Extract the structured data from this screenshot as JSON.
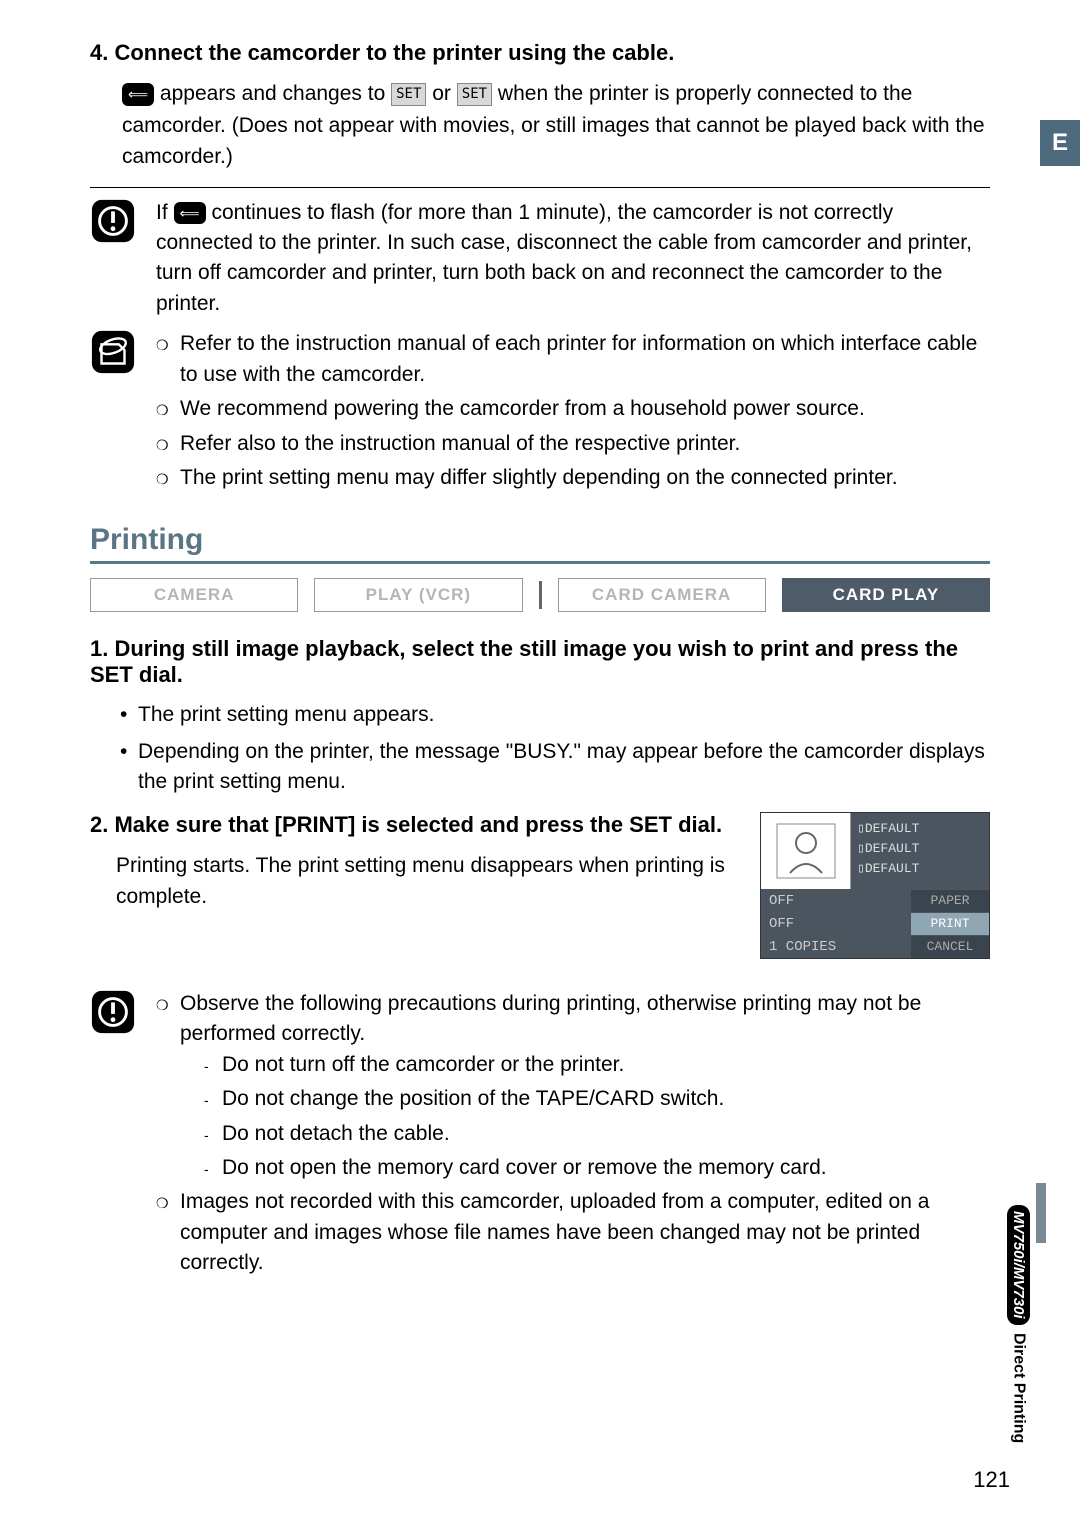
{
  "page": {
    "language_tab": "E",
    "number": "121",
    "side_section": "Direct Printing",
    "side_models": "MV750i/MV730i"
  },
  "step4": {
    "heading": "4. Connect the camcorder to the printer using the cable.",
    "body_pre": "appears and changes to",
    "body_mid": "or",
    "body_post": "when the printer is properly connected to the camcorder. (Does not appear with movies, or still images that cannot be played back with the camcorder.)",
    "set_label": "SET"
  },
  "warning1": {
    "text_pre": "If",
    "text_post": "continues to flash (for more than 1 minute), the camcorder is not correctly connected to the printer. In such case, disconnect the cable from camcorder and printer, turn off camcorder and printer, turn both back on and reconnect the camcorder to the printer."
  },
  "notes1": {
    "items": [
      "Refer to the instruction manual of each printer for information on which interface cable to use with the camcorder.",
      "We recommend powering the camcorder from a household power source.",
      "Refer also to the instruction manual of the respective printer.",
      "The print setting menu may differ slightly depending on the connected printer."
    ]
  },
  "section": {
    "title": "Printing"
  },
  "modes": {
    "items": [
      "CAMERA",
      "PLAY (VCR)",
      "CARD CAMERA",
      "CARD PLAY"
    ],
    "active_index": 3
  },
  "step1": {
    "heading": "1. During still image playback, select the still image you wish to print and press the SET dial.",
    "bullets": [
      "The print setting menu appears.",
      "Depending on the printer, the message \"BUSY.\" may appear before the camcorder displays the print setting menu."
    ]
  },
  "step2": {
    "heading": "2. Make sure that [PRINT] is selected and press the SET dial.",
    "body": "Printing starts. The print setting menu disappears when printing is complete."
  },
  "print_menu": {
    "defaults": [
      "DEFAULT",
      "DEFAULT",
      "DEFAULT"
    ],
    "rows": [
      {
        "left": "OFF",
        "right": "PAPER",
        "highlight": false
      },
      {
        "left": "OFF",
        "right": "PRINT",
        "highlight": true
      },
      {
        "left": "1 COPIES",
        "right": "CANCEL",
        "highlight": false
      }
    ]
  },
  "warning2": {
    "lead": "Observe the following precautions during printing, otherwise printing may not be performed correctly.",
    "subs": [
      "Do not turn off the camcorder or the printer.",
      "Do not change the position of the TAPE/CARD switch.",
      "Do not detach the cable.",
      "Do not open the memory card cover or remove the memory card."
    ],
    "second": "Images not recorded with this camcorder, uploaded from a computer, edited on a computer and images whose file names have been changed may not be printed correctly."
  }
}
